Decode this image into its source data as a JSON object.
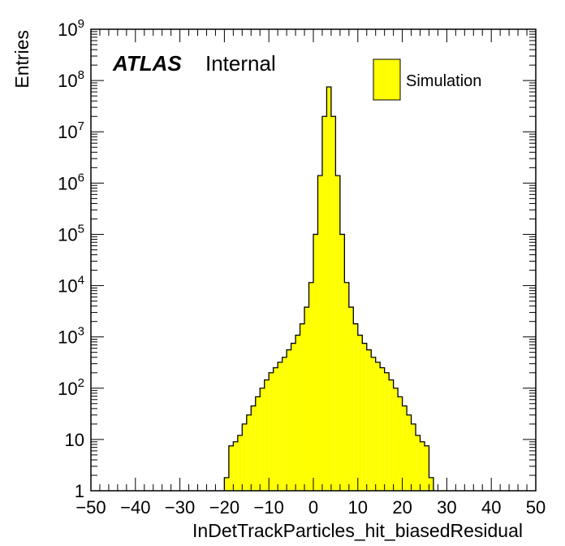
{
  "chart_data": {
    "type": "histogram",
    "xlabel": "InDetTrackParticles_hit_biasedResidual",
    "ylabel": "Entries",
    "xlim": [
      -50,
      50
    ],
    "ylim": [
      1,
      1000000000
    ],
    "y_scale": "log",
    "x_ticks": [
      "−50",
      "−40",
      "−30",
      "−20",
      "−10",
      "0",
      "10",
      "20",
      "30",
      "40",
      "50"
    ],
    "y_ticks": [
      {
        "base": "1",
        "exp": ""
      },
      {
        "base": "10",
        "exp": ""
      },
      {
        "base": "10",
        "exp": "2"
      },
      {
        "base": "10",
        "exp": "3"
      },
      {
        "base": "10",
        "exp": "4"
      },
      {
        "base": "10",
        "exp": "5"
      },
      {
        "base": "10",
        "exp": "6"
      },
      {
        "base": "10",
        "exp": "7"
      },
      {
        "base": "10",
        "exp": "8"
      },
      {
        "base": "10",
        "exp": "9"
      }
    ],
    "label": {
      "bold": "ATLAS",
      "normal": "Internal"
    },
    "legend": {
      "entry": "Simulation",
      "color": "#ffff00",
      "position": "top-right"
    },
    "fill_color": "#ffff00",
    "line_color": "#000000",
    "bin_width": 1,
    "bin_start": -20,
    "values": [
      1.8,
      7.5,
      9,
      12,
      20,
      30,
      45,
      68,
      100,
      145,
      200,
      250,
      320,
      400,
      560,
      750,
      1080,
      1800,
      3800,
      11500,
      100000,
      1400000,
      20000000,
      75000000,
      20000000,
      1400000,
      100000,
      11500,
      3800,
      1800,
      1080,
      750,
      560,
      400,
      320,
      250,
      200,
      145,
      100,
      68,
      45,
      30,
      20,
      12,
      9,
      7.5,
      1.8
    ]
  }
}
